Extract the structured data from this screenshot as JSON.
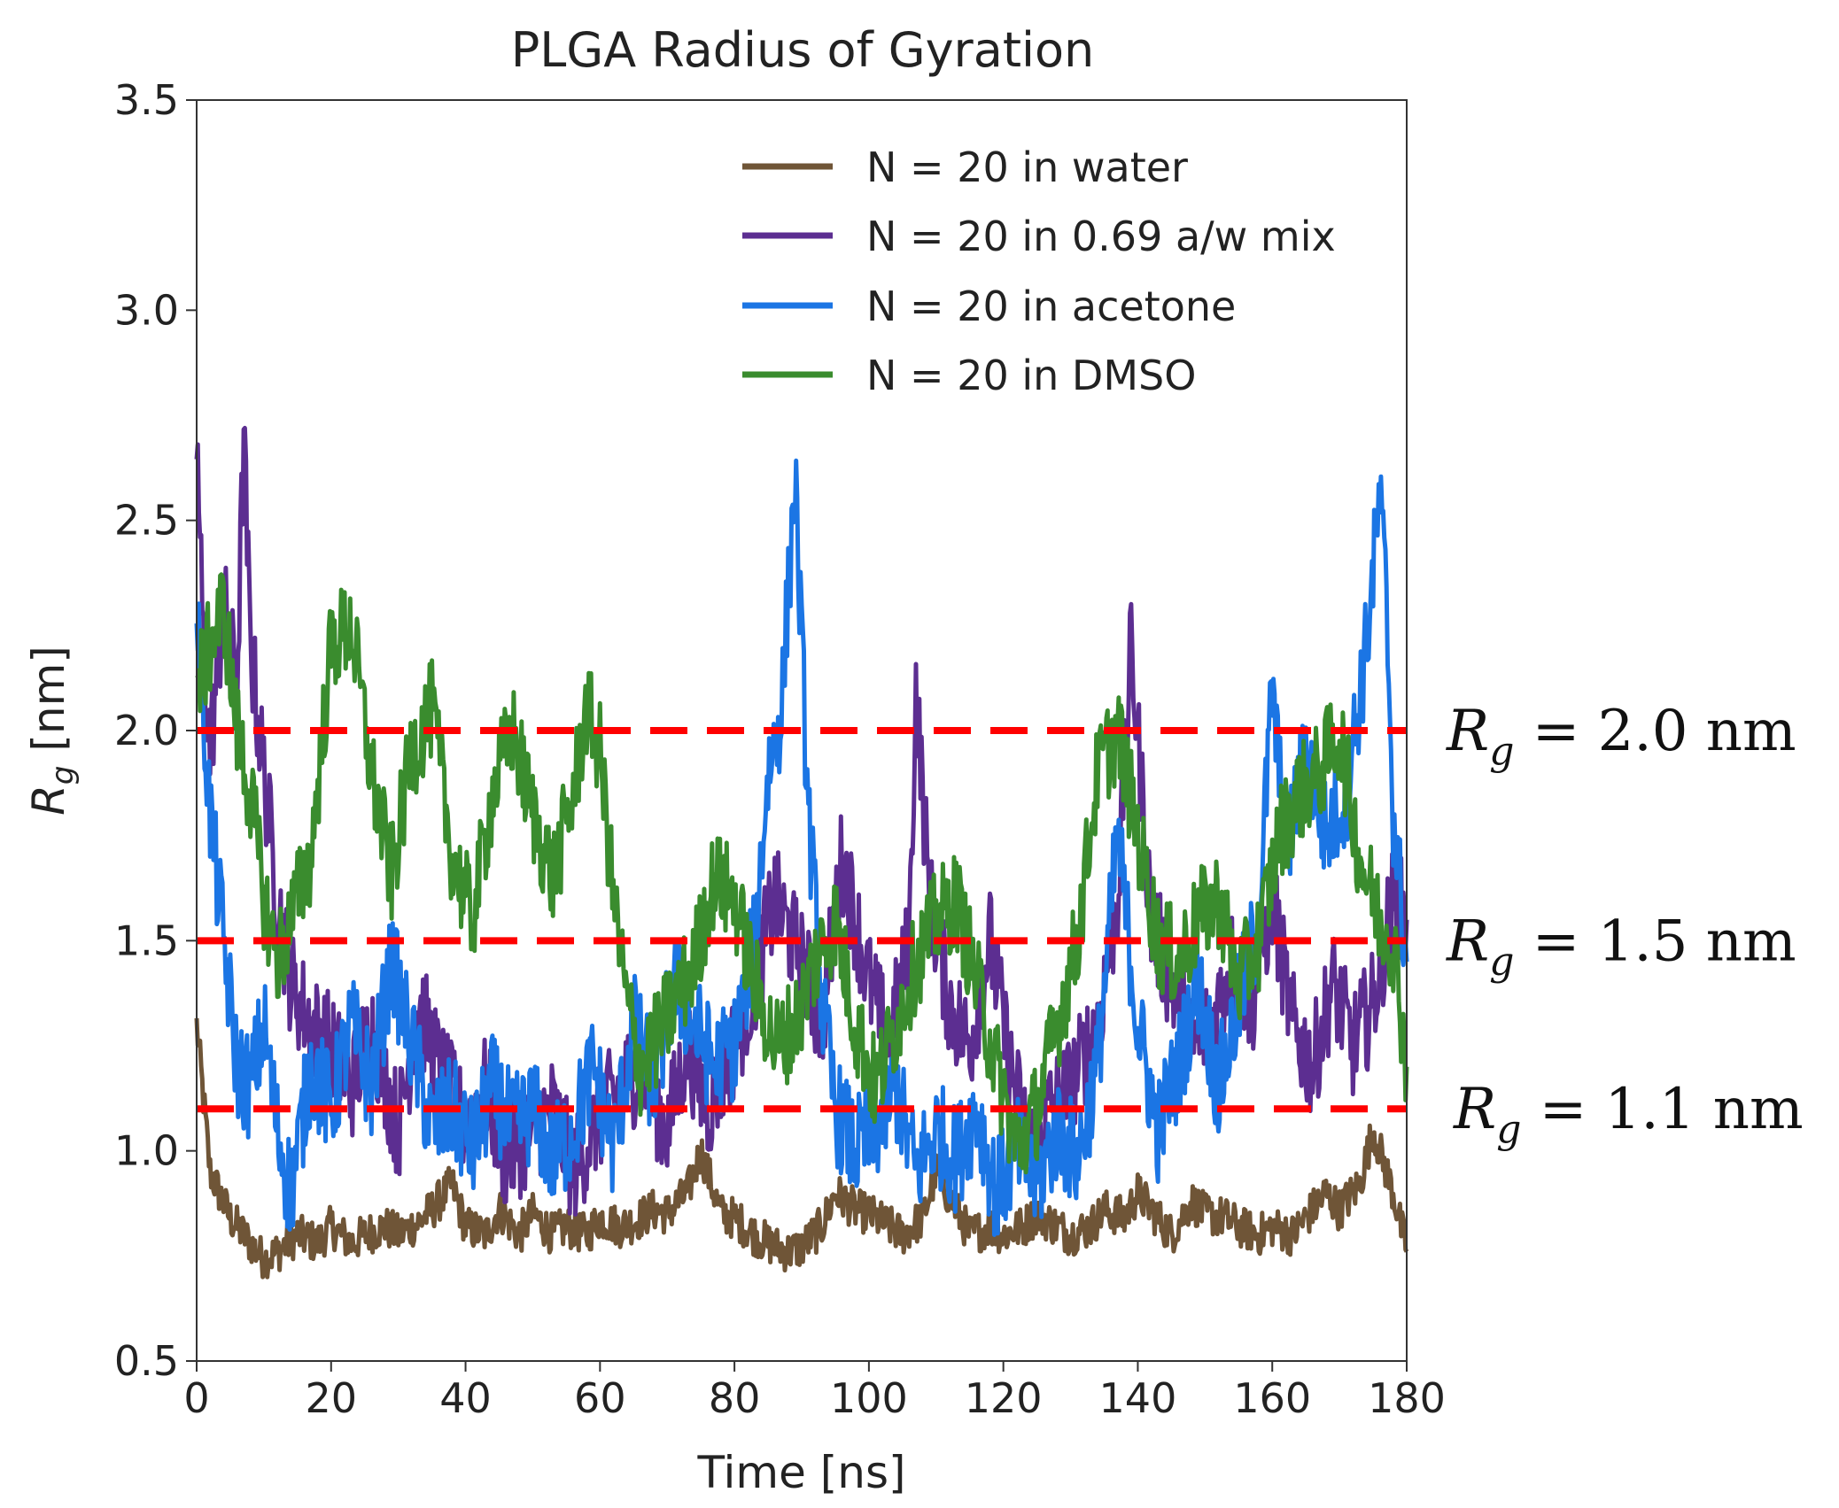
{
  "chart_data": {
    "type": "line",
    "title": "PLGA Radius of Gyration",
    "xlabel": "Time [ns]",
    "ylabel_main": "R",
    "ylabel_sub": "g",
    "ylabel_unit": " [nm]",
    "xlim": [
      0,
      180
    ],
    "ylim": [
      0.5,
      3.5
    ],
    "xticks": [
      0,
      20,
      40,
      60,
      80,
      100,
      120,
      140,
      160,
      180
    ],
    "xtick_labels": [
      "0",
      "20",
      "40",
      "60",
      "80",
      "100",
      "120",
      "140",
      "160",
      "180"
    ],
    "yticks": [
      0.5,
      1.0,
      1.5,
      2.0,
      2.5,
      3.0,
      3.5
    ],
    "ytick_labels": [
      "0.5",
      "1.0",
      "1.5",
      "2.0",
      "2.5",
      "3.0",
      "3.5"
    ],
    "legend_position": "top-right",
    "series": [
      {
        "name": "N = 20 in water",
        "color": "#6f5537",
        "x": [
          0,
          2,
          5,
          8,
          10,
          12,
          15,
          18,
          20,
          23,
          25,
          28,
          30,
          33,
          35,
          38,
          40,
          43,
          45,
          48,
          50,
          53,
          55,
          58,
          60,
          63,
          65,
          68,
          70,
          73,
          75,
          78,
          80,
          83,
          85,
          88,
          90,
          93,
          95,
          98,
          100,
          103,
          105,
          108,
          110,
          113,
          115,
          118,
          120,
          123,
          125,
          128,
          130,
          133,
          135,
          138,
          140,
          143,
          145,
          148,
          150,
          153,
          155,
          158,
          160,
          163,
          165,
          168,
          170,
          173,
          175,
          178,
          180
        ],
        "values": [
          1.3,
          0.95,
          0.84,
          0.78,
          0.74,
          0.76,
          0.8,
          0.78,
          0.82,
          0.78,
          0.8,
          0.82,
          0.8,
          0.83,
          0.86,
          0.92,
          0.82,
          0.8,
          0.86,
          0.8,
          0.85,
          0.8,
          0.82,
          0.8,
          0.84,
          0.82,
          0.83,
          0.86,
          0.85,
          0.9,
          1.0,
          0.85,
          0.84,
          0.8,
          0.78,
          0.76,
          0.77,
          0.82,
          0.9,
          0.86,
          0.85,
          0.82,
          0.8,
          0.84,
          0.95,
          0.86,
          0.8,
          0.82,
          0.8,
          0.82,
          0.85,
          0.82,
          0.8,
          0.82,
          0.86,
          0.84,
          0.9,
          0.84,
          0.8,
          0.88,
          0.85,
          0.84,
          0.82,
          0.8,
          0.82,
          0.8,
          0.84,
          0.9,
          0.86,
          0.92,
          1.05,
          0.9,
          0.76
        ]
      },
      {
        "name": "N = 20 in 0.69 a/w mix",
        "color": "#5c2e91",
        "x": [
          0,
          1,
          2,
          4,
          6,
          7,
          8,
          10,
          12,
          14,
          17,
          20,
          23,
          26,
          30,
          33,
          36,
          40,
          43,
          46,
          50,
          53,
          56,
          60,
          63,
          66,
          70,
          73,
          76,
          80,
          83,
          86,
          90,
          93,
          96,
          100,
          103,
          106,
          107,
          109,
          112,
          115,
          118,
          121,
          124,
          127,
          130,
          134,
          137,
          139,
          142,
          145,
          148,
          151,
          154,
          157,
          160,
          163,
          166,
          169,
          172,
          175,
          178,
          180
        ],
        "values": [
          2.7,
          2.2,
          1.95,
          2.3,
          2.1,
          2.7,
          2.2,
          1.9,
          1.6,
          1.4,
          1.3,
          1.25,
          1.15,
          1.3,
          1.05,
          1.35,
          1.2,
          1.05,
          1.15,
          0.98,
          1.05,
          1.1,
          0.95,
          1.08,
          1.15,
          1.2,
          1.05,
          1.25,
          1.1,
          1.25,
          1.4,
          1.6,
          1.45,
          1.3,
          1.7,
          1.4,
          1.25,
          1.5,
          2.1,
          1.6,
          1.35,
          1.25,
          1.5,
          1.2,
          1.0,
          1.1,
          1.15,
          1.3,
          1.6,
          2.2,
          1.55,
          1.4,
          1.25,
          1.3,
          1.45,
          1.35,
          1.6,
          1.3,
          1.2,
          1.4,
          1.25,
          1.35,
          1.6,
          1.55
        ]
      },
      {
        "name": "N = 20 in acetone",
        "color": "#1b75e4",
        "x": [
          0,
          2,
          4,
          6,
          8,
          10,
          12,
          14,
          17,
          20,
          23,
          26,
          29,
          32,
          35,
          38,
          41,
          44,
          47,
          50,
          53,
          56,
          59,
          62,
          65,
          68,
          71,
          74,
          77,
          80,
          83,
          85,
          87,
          89,
          91,
          93,
          95,
          98,
          101,
          104,
          107,
          110,
          113,
          116,
          119,
          122,
          125,
          128,
          131,
          134,
          137,
          140,
          143,
          146,
          149,
          152,
          155,
          158,
          160,
          162,
          165,
          168,
          171,
          174,
          176,
          177,
          178,
          180
        ],
        "values": [
          2.3,
          1.8,
          1.5,
          1.2,
          1.15,
          1.3,
          1.05,
          0.9,
          1.2,
          1.1,
          1.3,
          1.15,
          1.45,
          1.25,
          1.05,
          1.1,
          1.0,
          1.15,
          1.05,
          1.1,
          0.98,
          1.05,
          1.2,
          1.0,
          1.3,
          1.15,
          1.4,
          1.3,
          1.2,
          1.25,
          1.5,
          1.9,
          2.05,
          2.6,
          1.8,
          1.35,
          1.1,
          1.0,
          1.05,
          1.15,
          0.95,
          1.05,
          0.98,
          1.1,
          0.9,
          1.0,
          0.92,
          1.05,
          0.98,
          1.2,
          1.75,
          1.3,
          1.05,
          1.2,
          1.4,
          1.15,
          1.35,
          1.55,
          2.1,
          1.7,
          1.95,
          1.75,
          1.85,
          2.2,
          2.55,
          2.3,
          1.8,
          1.45
        ]
      },
      {
        "name": "N = 20 in DMSO",
        "color": "#3a8c2e",
        "x": [
          0,
          2,
          4,
          6,
          8,
          10,
          12,
          14,
          17,
          20,
          23,
          26,
          29,
          32,
          35,
          38,
          41,
          44,
          47,
          50,
          53,
          56,
          58,
          60,
          62,
          64,
          66,
          68,
          71,
          74,
          77,
          80,
          83,
          86,
          89,
          92,
          95,
          98,
          101,
          104,
          107,
          110,
          113,
          116,
          119,
          122,
          125,
          128,
          131,
          134,
          137,
          140,
          143,
          146,
          149,
          152,
          155,
          158,
          161,
          164,
          167,
          170,
          173,
          176,
          178,
          180
        ],
        "values": [
          2.1,
          2.2,
          2.3,
          2.0,
          1.85,
          1.6,
          1.45,
          1.55,
          1.7,
          2.2,
          2.25,
          1.9,
          1.65,
          1.95,
          2.05,
          1.7,
          1.55,
          1.85,
          2.0,
          1.8,
          1.65,
          1.85,
          2.05,
          1.95,
          1.6,
          1.35,
          1.2,
          1.25,
          1.35,
          1.45,
          1.65,
          1.6,
          1.4,
          1.25,
          1.3,
          1.45,
          1.55,
          1.3,
          1.15,
          1.3,
          1.45,
          1.55,
          1.6,
          1.4,
          1.2,
          1.0,
          1.1,
          1.3,
          1.5,
          1.9,
          2.0,
          1.75,
          1.5,
          1.45,
          1.55,
          1.6,
          1.4,
          1.5,
          1.75,
          1.85,
          1.9,
          2.0,
          1.7,
          1.55,
          1.5,
          1.2
        ]
      }
    ],
    "reference_lines": [
      {
        "value": 2.0,
        "label_main": "R",
        "label_sub": "g",
        "label_rest": " = 2.0 nm",
        "color": "#ff0000"
      },
      {
        "value": 1.5,
        "label_main": "R",
        "label_sub": "g",
        "label_rest": " = 1.5 nm",
        "color": "#ff0000"
      },
      {
        "value": 1.1,
        "label_main": "R",
        "label_sub": "g",
        "label_rest": " = 1.1 nm",
        "color": "#ff0000"
      }
    ]
  }
}
